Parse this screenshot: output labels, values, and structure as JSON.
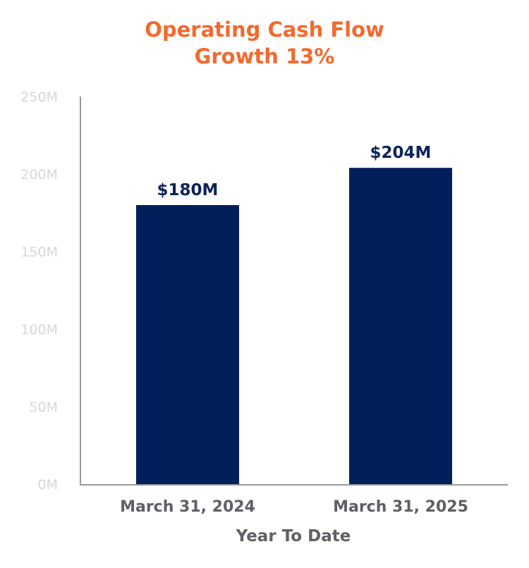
{
  "chart_data": {
    "type": "bar",
    "title": [
      "Operating Cash Flow",
      "Growth 13%"
    ],
    "categories": [
      "March 31, 2024",
      "March 31, 2025"
    ],
    "values": [
      180,
      204
    ],
    "data_labels": [
      "$180M",
      "$204M"
    ],
    "xlabel": "Year To Date",
    "ylabel": "",
    "ylim": [
      0,
      250
    ],
    "yticks": [
      0,
      50,
      100,
      150,
      200,
      250
    ],
    "ytick_labels": [
      "0M",
      "50M",
      "100M",
      "150M",
      "200M",
      "250M"
    ],
    "grid": false,
    "legend": "none",
    "colors": {
      "bar": "#001f5b",
      "title": "#f26a2e",
      "axis": "#9a9a9a"
    }
  }
}
